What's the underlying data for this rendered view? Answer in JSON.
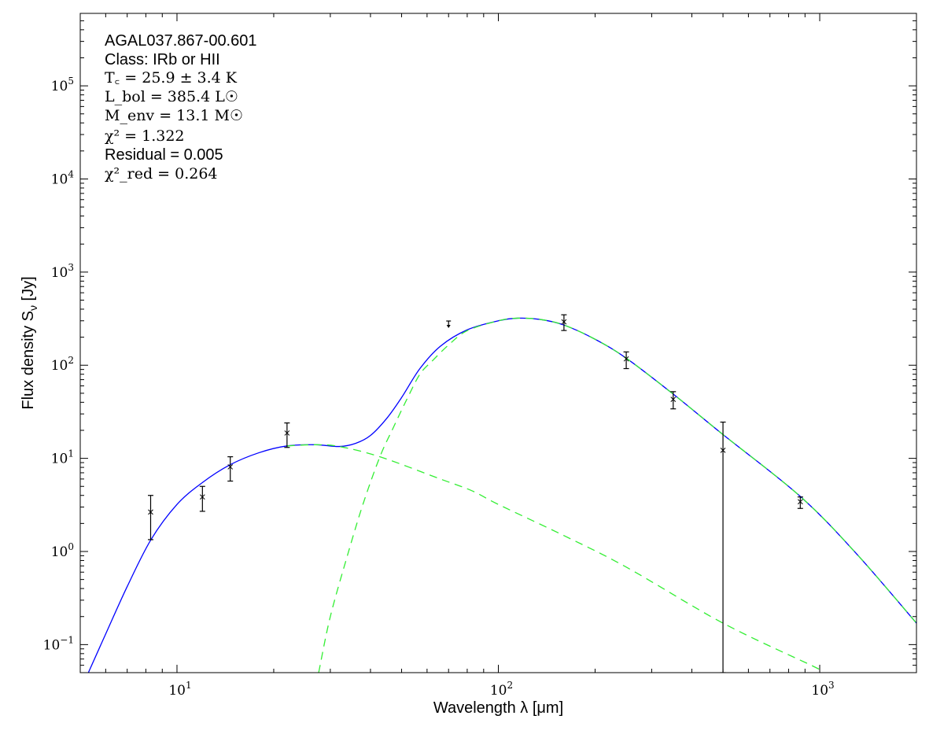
{
  "chart_data": {
    "type": "line",
    "xlabel": "Wavelength λ [μm]",
    "ylabel": "Flux density S",
    "ylabel_sub": "ν",
    "ylabel_unit": " [Jy]",
    "xscale": "log",
    "yscale": "log",
    "xlim": [
      5,
      2000
    ],
    "ylim": [
      0.05,
      600000
    ],
    "grid": false,
    "x_ticks": [
      {
        "base": "10",
        "exp": "1",
        "value": 10
      },
      {
        "base": "10",
        "exp": "2",
        "value": 100
      },
      {
        "base": "10",
        "exp": "3",
        "value": 1000
      }
    ],
    "y_ticks": [
      {
        "base": "10",
        "exp": "−1",
        "value": 0.1
      },
      {
        "base": "10",
        "exp": "0",
        "value": 1
      },
      {
        "base": "10",
        "exp": "1",
        "value": 10
      },
      {
        "base": "10",
        "exp": "2",
        "value": 100
      },
      {
        "base": "10",
        "exp": "3",
        "value": 1000
      },
      {
        "base": "10",
        "exp": "4",
        "value": 10000
      },
      {
        "base": "10",
        "exp": "5",
        "value": 100000
      }
    ],
    "annotations": {
      "source": "AGAL037.867-00.601",
      "class": "Class: IRb or HII",
      "tc": "T꜀ = 25.9 ± 3.4 K",
      "lbol": "L_bol = 385.4 L☉",
      "menv": "M_env = 13.1 M☉",
      "chi2": "χ² = 1.322",
      "residual": "Residual = 0.005",
      "chi2red": "χ²_red = 0.264"
    },
    "annotation_parts": {
      "tc": [
        "T",
        "c",
        " = 25.9 ± 3.4 K"
      ],
      "lbol": [
        "L",
        "bol",
        " = 385.4 L☉"
      ],
      "menv": [
        "M",
        "env",
        " = 13.1 M☉"
      ],
      "chi2": [
        "χ",
        "2",
        " = 1.322"
      ],
      "chi2red": [
        "χ",
        "2",
        "red",
        " = 0.264"
      ]
    },
    "colors": {
      "total": "#0000ff",
      "components": "#33ee33",
      "data": "#000000"
    },
    "series": [
      {
        "style": "solid",
        "color": "#0000ff",
        "points": [
          [
            5.3,
            0.05
          ],
          [
            6,
            0.13
          ],
          [
            7,
            0.42
          ],
          [
            8.3,
            1.34
          ],
          [
            10,
            3.2
          ],
          [
            12,
            5.5
          ],
          [
            14.6,
            8.5
          ],
          [
            18,
            11.5
          ],
          [
            22,
            13.6
          ],
          [
            27,
            14
          ],
          [
            32,
            13.4
          ],
          [
            36,
            14.5
          ],
          [
            40,
            17.6
          ],
          [
            45,
            27
          ],
          [
            50,
            45
          ],
          [
            57,
            92
          ],
          [
            66,
            160
          ],
          [
            80,
            240
          ],
          [
            100,
            300
          ],
          [
            115,
            320
          ],
          [
            135,
            310
          ],
          [
            160,
            270
          ],
          [
            200,
            190
          ],
          [
            250,
            119
          ],
          [
            350,
            49
          ],
          [
            500,
            18
          ],
          [
            870,
            3.9
          ],
          [
            1300,
            0.95
          ],
          [
            2000,
            0.17
          ]
        ]
      },
      {
        "style": "dashed",
        "color": "#33ee33",
        "points": [
          [
            27.6,
            0.05
          ],
          [
            30,
            0.2
          ],
          [
            34.2,
            1.0
          ],
          [
            38,
            3.3
          ],
          [
            42.8,
            10.4
          ],
          [
            47,
            21
          ],
          [
            51.9,
            43
          ],
          [
            57,
            80
          ],
          [
            62.4,
            112
          ],
          [
            70,
            165
          ],
          [
            80,
            235
          ],
          [
            100,
            300
          ],
          [
            115,
            320
          ],
          [
            135,
            310
          ],
          [
            160,
            270
          ],
          [
            200,
            190
          ],
          [
            250,
            119
          ],
          [
            350,
            49
          ],
          [
            500,
            18
          ],
          [
            870,
            3.9
          ],
          [
            1300,
            0.95
          ],
          [
            2000,
            0.17
          ]
        ]
      },
      {
        "style": "dashed",
        "color": "#33ee33",
        "points": [
          [
            22,
            13.6
          ],
          [
            27,
            14
          ],
          [
            32,
            13.4
          ],
          [
            42.8,
            10.4
          ],
          [
            66,
            6
          ],
          [
            82.6,
            4.5
          ],
          [
            100,
            3.2
          ],
          [
            160,
            1.48
          ],
          [
            250,
            0.68
          ],
          [
            500,
            0.17
          ],
          [
            950,
            0.059
          ],
          [
            1000,
            0.053
          ]
        ]
      }
    ],
    "data_points": [
      {
        "x": 8.28,
        "y": 2.65,
        "lo": 1.34,
        "hi": 4.0
      },
      {
        "x": 12,
        "y": 3.85,
        "lo": 2.7,
        "hi": 5.0
      },
      {
        "x": 14.65,
        "y": 8.1,
        "lo": 5.7,
        "hi": 10.4
      },
      {
        "x": 22,
        "y": 18.7,
        "lo": 13.1,
        "hi": 24
      },
      {
        "x": 70,
        "y": 287,
        "upper_limit": true
      },
      {
        "x": 160,
        "y": 292,
        "lo": 236,
        "hi": 348
      },
      {
        "x": 250,
        "y": 117,
        "lo": 92,
        "hi": 139
      },
      {
        "x": 350,
        "y": 43,
        "lo": 34,
        "hi": 52
      },
      {
        "x": 500,
        "y": 12.2,
        "lo": 0.05,
        "hi": 24.5
      },
      {
        "x": 870,
        "y": 3.42,
        "lo": 2.9,
        "hi": 3.85
      }
    ]
  }
}
